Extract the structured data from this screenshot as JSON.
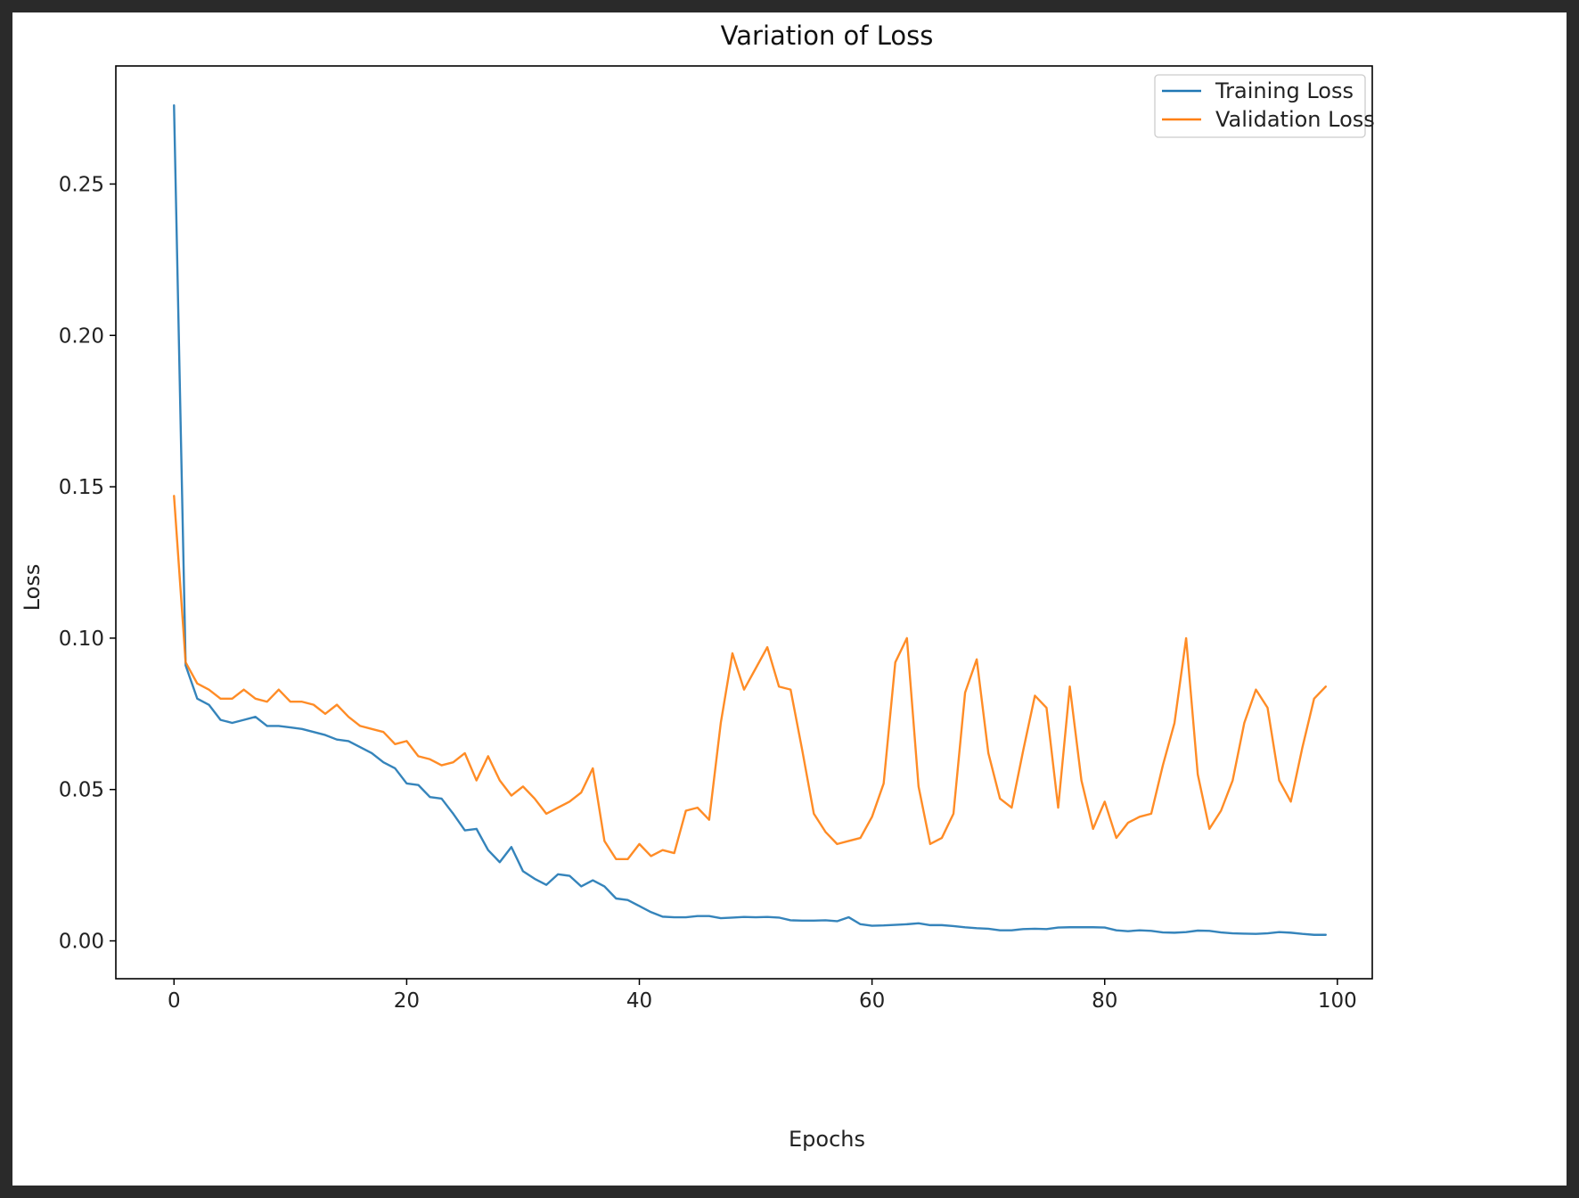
{
  "chart_data": {
    "type": "line",
    "title": "Variation of Loss",
    "xlabel": "Epochs",
    "ylabel": "Loss",
    "xlim": [
      -5,
      103
    ],
    "ylim": [
      -0.0125,
      0.289
    ],
    "xticks": [
      0,
      20,
      40,
      60,
      80,
      100
    ],
    "yticks": [
      0.0,
      0.05,
      0.1,
      0.15,
      0.2,
      0.25
    ],
    "xtick_labels": [
      "0",
      "20",
      "40",
      "60",
      "80",
      "100"
    ],
    "ytick_labels": [
      "0.00",
      "0.05",
      "0.10",
      "0.15",
      "0.20",
      "0.25"
    ],
    "grid": false,
    "legend_position": "top-right",
    "series": [
      {
        "name": "Training Loss",
        "color": "#1f77b4",
        "values": [
          0.276,
          0.091,
          0.08,
          0.078,
          0.073,
          0.072,
          0.073,
          0.074,
          0.071,
          0.071,
          0.0705,
          0.07,
          0.069,
          0.068,
          0.0665,
          0.066,
          0.064,
          0.062,
          0.059,
          0.057,
          0.052,
          0.0515,
          0.0475,
          0.047,
          0.042,
          0.0365,
          0.037,
          0.03,
          0.026,
          0.031,
          0.023,
          0.0205,
          0.0185,
          0.022,
          0.0215,
          0.018,
          0.02,
          0.018,
          0.014,
          0.0135,
          0.0115,
          0.0095,
          0.008,
          0.0078,
          0.0078,
          0.0082,
          0.0082,
          0.0075,
          0.0077,
          0.0079,
          0.0078,
          0.0079,
          0.0077,
          0.0068,
          0.0067,
          0.0067,
          0.0068,
          0.0065,
          0.0078,
          0.0055,
          0.005,
          0.0051,
          0.0053,
          0.0055,
          0.0058,
          0.0052,
          0.0052,
          0.0049,
          0.0045,
          0.0042,
          0.004,
          0.0035,
          0.0035,
          0.0039,
          0.004,
          0.0039,
          0.0044,
          0.0045,
          0.0045,
          0.0045,
          0.0044,
          0.0035,
          0.0032,
          0.0035,
          0.0033,
          0.0028,
          0.0027,
          0.0029,
          0.0034,
          0.0033,
          0.0028,
          0.0025,
          0.0024,
          0.0023,
          0.0025,
          0.0029,
          0.0027,
          0.0023,
          0.002,
          0.002
        ]
      },
      {
        "name": "Validation Loss",
        "color": "#ff7f0e",
        "values": [
          0.147,
          0.092,
          0.085,
          0.083,
          0.08,
          0.08,
          0.083,
          0.08,
          0.079,
          0.083,
          0.079,
          0.079,
          0.078,
          0.075,
          0.078,
          0.074,
          0.071,
          0.07,
          0.069,
          0.065,
          0.066,
          0.061,
          0.06,
          0.058,
          0.059,
          0.062,
          0.053,
          0.061,
          0.053,
          0.048,
          0.051,
          0.047,
          0.042,
          0.044,
          0.046,
          0.049,
          0.057,
          0.033,
          0.027,
          0.027,
          0.032,
          0.028,
          0.03,
          0.029,
          0.043,
          0.044,
          0.04,
          0.072,
          0.095,
          0.083,
          0.09,
          0.097,
          0.084,
          0.083,
          0.063,
          0.042,
          0.036,
          0.032,
          0.033,
          0.034,
          0.041,
          0.052,
          0.092,
          0.1,
          0.051,
          0.032,
          0.034,
          0.042,
          0.082,
          0.093,
          0.062,
          0.047,
          0.044,
          0.063,
          0.081,
          0.077,
          0.044,
          0.084,
          0.053,
          0.037,
          0.046,
          0.034,
          0.039,
          0.041,
          0.042,
          0.058,
          0.072,
          0.1,
          0.055,
          0.037,
          0.043,
          0.053,
          0.072,
          0.083,
          0.077,
          0.053,
          0.046,
          0.064,
          0.08,
          0.084
        ]
      }
    ]
  }
}
